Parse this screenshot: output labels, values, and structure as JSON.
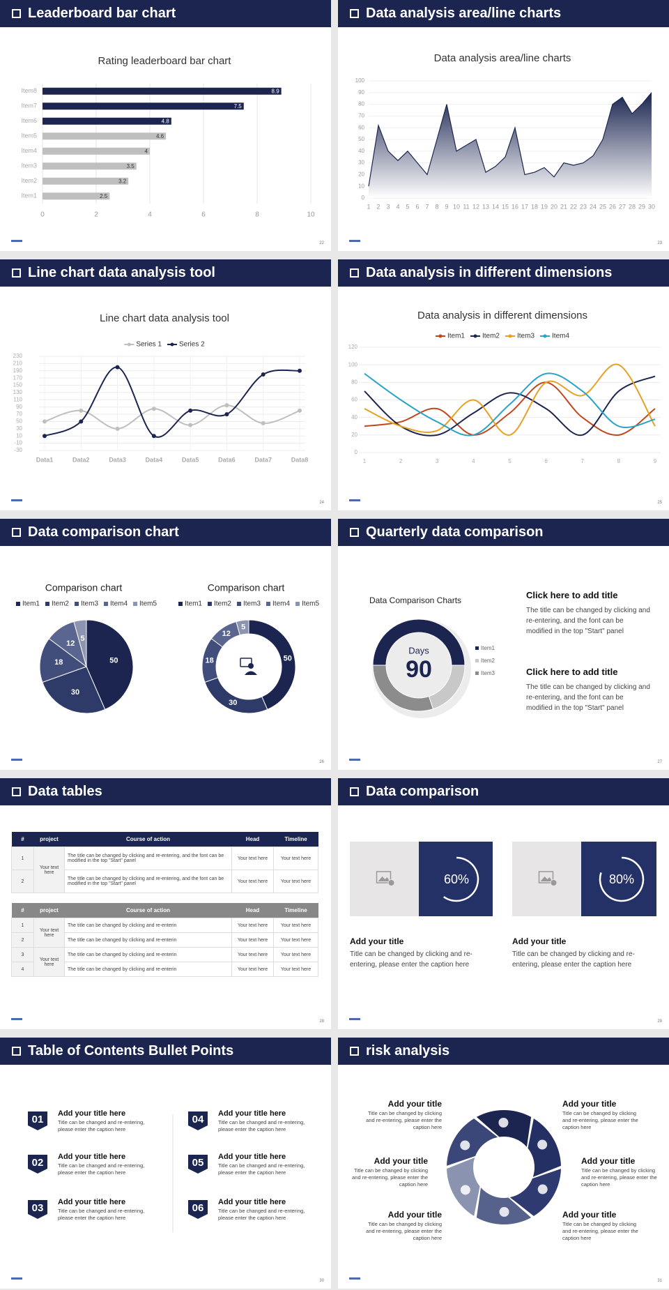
{
  "slides": [
    {
      "heading": "Leaderboard bar chart",
      "page": "22"
    },
    {
      "heading": "Data analysis area/line charts",
      "page": "23"
    },
    {
      "heading": "Line chart data analysis tool",
      "page": "24"
    },
    {
      "heading": "Data analysis in different dimensions",
      "page": "25"
    },
    {
      "heading": "Data comparison chart",
      "page": "26"
    },
    {
      "heading": "Quarterly data comparison",
      "page": "27",
      "blocks": [
        {
          "title": "Click here to add title",
          "body": "The title can be changed by clicking and re-entering, and the font can be modified in the top \"Start\" panel"
        },
        {
          "title": "Click here to add title",
          "body": "The title can be changed by clicking and re-entering, and the font can be modified in the top \"Start\" panel"
        }
      ]
    },
    {
      "heading": "Data tables",
      "page": "28",
      "tables": [
        {
          "header": [
            "#",
            "project",
            "Course of action",
            "Head",
            "Timeline"
          ],
          "groups": [
            {
              "project": "Your text here",
              "rows": [
                [
                  "1",
                  "The title can be changed by clicking and re-entering, and the font can be modified in the top \"Start\" panel",
                  "Your text here",
                  "Your text here"
                ],
                [
                  "2",
                  "The title can be changed by clicking and re-entering, and the font can be modified in the top \"Start\" panel",
                  "Your text here",
                  "Your text here"
                ]
              ]
            }
          ]
        },
        {
          "header": [
            "#",
            "project",
            "Course of action",
            "Head",
            "Timeline"
          ],
          "groups": [
            {
              "project": "Your text here",
              "rows": [
                [
                  "1",
                  "The title can be changed by clicking and re-enterin",
                  "Your text here",
                  "Your text here"
                ],
                [
                  "2",
                  "The title can be changed by clicking and re-enterin",
                  "Your text here",
                  "Your text here"
                ]
              ]
            },
            {
              "project": "Your text here",
              "rows": [
                [
                  "3",
                  "The title can be changed by clicking and re-enterin",
                  "Your text here",
                  "Your text here"
                ],
                [
                  "4",
                  "The title can be changed by clicking and re-enterin",
                  "Your text here",
                  "Your text here"
                ]
              ]
            }
          ]
        }
      ]
    },
    {
      "heading": "Data comparison",
      "page": "29",
      "cards": [
        {
          "title": "Add your title",
          "body": "Title can be changed by clicking and re-entering, please enter the caption here"
        },
        {
          "title": "Add your title",
          "body": "Title can be changed by clicking and re-entering, please enter the caption here"
        }
      ]
    },
    {
      "heading": "Table of Contents Bullet Points",
      "page": "30",
      "items": [
        {
          "number": "01",
          "title": "Add your title here",
          "body": "Title can be changed and re-entering, please enter the caption here"
        },
        {
          "number": "02",
          "title": "Add your title here",
          "body": "Title can be changed and re-entering, please enter the caption here"
        },
        {
          "number": "03",
          "title": "Add your title here",
          "body": "Title can be changed and re-entering, please enter the caption here"
        },
        {
          "number": "04",
          "title": "Add your title here",
          "body": "Title can be changed and re-entering, please enter the caption here"
        },
        {
          "number": "05",
          "title": "Add your title here",
          "body": "Title can be changed and re-entering, please enter the caption here"
        },
        {
          "number": "06",
          "title": "Add your title here",
          "body": "Title can be changed and re-entering, please enter the caption here"
        }
      ]
    },
    {
      "heading": "risk analysis",
      "page": "31",
      "items": [
        {
          "title": "Add your title",
          "body": "Title can be changed by clicking and re-entering, please enter the caption here"
        },
        {
          "title": "Add your title",
          "body": "Title can be changed by clicking and re-entering, please enter the caption here"
        },
        {
          "title": "Add your title",
          "body": "Title can be changed by clicking and re-entering, please enter the caption here"
        },
        {
          "title": "Add your title",
          "body": "Title can be changed by clicking and re-entering, please enter the caption here"
        },
        {
          "title": "Add your title",
          "body": "Title can be changed by clicking and re-entering, please enter the caption here"
        },
        {
          "title": "Add your title",
          "body": "Title can be changed by clicking and re-entering, please enter the caption here"
        }
      ]
    }
  ],
  "chart_data": [
    {
      "type": "bar",
      "horizontal": true,
      "title": "Rating leaderboard bar chart",
      "categories": [
        "Item1",
        "Item2",
        "Item3",
        "Item4",
        "Item5",
        "Item6",
        "Item7",
        "Item8"
      ],
      "values": [
        2.5,
        3.2,
        3.5,
        4,
        4.6,
        4.8,
        7.5,
        8.9
      ],
      "colors": [
        "#bfbfbf",
        "#bfbfbf",
        "#bfbfbf",
        "#bfbfbf",
        "#bfbfbf",
        "#1b2550",
        "#1b2550",
        "#1b2550"
      ],
      "xlim": [
        0,
        10
      ],
      "xticks": [
        0,
        2,
        4,
        6,
        8,
        10
      ],
      "grid": true
    },
    {
      "type": "area",
      "title": "Data analysis area/line charts",
      "x": [
        1,
        2,
        3,
        4,
        5,
        6,
        7,
        8,
        9,
        10,
        11,
        12,
        13,
        14,
        15,
        16,
        17,
        18,
        19,
        20,
        21,
        22,
        23,
        24,
        25,
        26,
        27,
        28,
        29,
        30
      ],
      "values": [
        10,
        62,
        40,
        32,
        40,
        30,
        20,
        50,
        80,
        40,
        45,
        50,
        22,
        27,
        35,
        60,
        20,
        22,
        26,
        18,
        30,
        28,
        30,
        36,
        50,
        80,
        86,
        72,
        80,
        90
      ],
      "color": "#1b2550",
      "xlim": [
        1,
        30
      ],
      "xticks": [
        1,
        2,
        3,
        4,
        5,
        6,
        7,
        8,
        9,
        10,
        11,
        12,
        13,
        14,
        15,
        16,
        17,
        18,
        19,
        20,
        21,
        22,
        23,
        24,
        25,
        26,
        27,
        28,
        29,
        30
      ],
      "ylim": [
        0,
        100
      ],
      "yticks": [
        0,
        10,
        20,
        30,
        40,
        50,
        60,
        70,
        80,
        90,
        100
      ],
      "grid": true
    },
    {
      "type": "line",
      "title": "Line chart data analysis tool",
      "smooth": true,
      "markers": true,
      "legend": "top",
      "grid": true,
      "categories": [
        "Data1",
        "Data2",
        "Data3",
        "Data4",
        "Data5",
        "Data6",
        "Data7",
        "Data8"
      ],
      "series": [
        {
          "name": "Series 1",
          "color": "#bfbfbf",
          "values": [
            50,
            80,
            30,
            85,
            40,
            95,
            45,
            80
          ]
        },
        {
          "name": "Series 2",
          "color": "#1b2550",
          "values": [
            10,
            50,
            200,
            10,
            80,
            70,
            180,
            190
          ]
        }
      ],
      "ylim": [
        -30,
        230
      ],
      "yticks": [
        -30,
        -10,
        10,
        30,
        50,
        70,
        90,
        110,
        130,
        150,
        170,
        190,
        210,
        230
      ]
    },
    {
      "type": "line",
      "title": "Data analysis in different dimensions",
      "smooth": true,
      "markers": false,
      "legend": "top",
      "grid": true,
      "x": [
        1,
        2,
        3,
        4,
        5,
        6,
        7,
        8,
        9
      ],
      "xlim": [
        1,
        9
      ],
      "xticks": [
        1,
        2,
        3,
        4,
        5,
        6,
        7,
        8,
        9
      ],
      "series": [
        {
          "name": "Item1",
          "color": "#c0461b",
          "values": [
            30,
            35,
            50,
            20,
            45,
            80,
            40,
            20,
            50
          ]
        },
        {
          "name": "Item2",
          "color": "#1b2550",
          "values": [
            70,
            30,
            20,
            45,
            68,
            50,
            20,
            70,
            87
          ]
        },
        {
          "name": "Item3",
          "color": "#e8a020",
          "values": [
            50,
            30,
            25,
            60,
            20,
            80,
            65,
            100,
            30
          ]
        },
        {
          "name": "Item4",
          "color": "#29a3c7",
          "values": [
            90,
            60,
            35,
            20,
            55,
            90,
            70,
            30,
            38
          ]
        }
      ],
      "ylim": [
        0,
        120
      ],
      "yticks": [
        0,
        20,
        40,
        60,
        80,
        100,
        120
      ]
    },
    {
      "type": "pie",
      "title": "Comparison chart",
      "legend": "top",
      "data_labels": true,
      "categories": [
        "Item1",
        "Item2",
        "Item3",
        "Item4",
        "Item5"
      ],
      "values": [
        50,
        30,
        18,
        12,
        5
      ],
      "colors": [
        "#1b2550",
        "#2e3a68",
        "#414d7b",
        "#5a6690",
        "#8c94b0"
      ]
    },
    {
      "type": "donut",
      "title": "Comparison chart",
      "legend": "top",
      "data_labels": true,
      "categories": [
        "Item1",
        "Item2",
        "Item3",
        "Item4",
        "Item5"
      ],
      "values": [
        50,
        30,
        18,
        12,
        5
      ],
      "colors": [
        "#1b2550",
        "#2e3a68",
        "#414d7b",
        "#5a6690",
        "#8c94b0"
      ]
    },
    {
      "type": "donut",
      "title": "Data Comparison Charts",
      "legend": "right",
      "data_labels": false,
      "categories": [
        "Item1",
        "Item2",
        "Item3"
      ],
      "values": [
        50,
        20,
        30
      ],
      "colors": [
        "#1b2550",
        "#c8c8c8",
        "#8c8c8c"
      ],
      "center_label": "Days",
      "center_value": 90
    },
    {
      "type": "gauge",
      "values": [
        60
      ],
      "value_labels": [
        "60%"
      ],
      "ylim": [
        0,
        100
      ]
    },
    {
      "type": "gauge",
      "values": [
        80
      ],
      "value_labels": [
        "80%"
      ],
      "ylim": [
        0,
        100
      ]
    }
  ]
}
